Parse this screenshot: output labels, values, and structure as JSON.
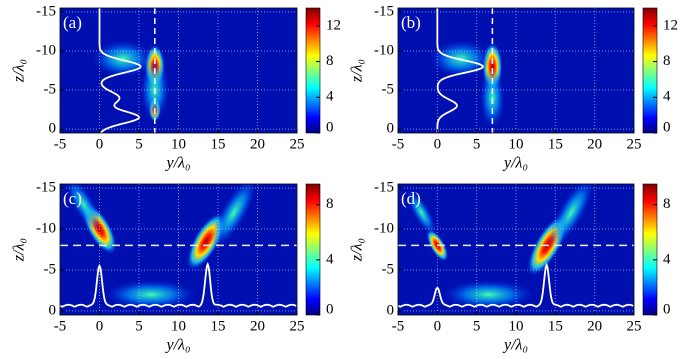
{
  "chart_data": [
    {
      "type": "heatmap",
      "panel_label": "(a)",
      "xlabel": "y/λ₀",
      "ylabel": "z/λ₀",
      "xlim": [
        -5,
        25
      ],
      "ylim": [
        0.5,
        -15.5
      ],
      "xticks": [
        -5,
        0,
        5,
        10,
        15,
        20,
        25
      ],
      "yticks": [
        0,
        -5,
        -10,
        -15
      ],
      "grid": true,
      "colorbar_lim": [
        0,
        14
      ],
      "colorbar_ticks": [
        0,
        4,
        8,
        12
      ],
      "guide_line": {
        "axis": "y",
        "value": 7
      }
    },
    {
      "type": "heatmap",
      "panel_label": "(b)",
      "xlabel": "y/λ₀",
      "ylabel": "z/λ₀",
      "xlim": [
        -5,
        25
      ],
      "ylim": [
        0.5,
        -15.5
      ],
      "xticks": [
        -5,
        0,
        5,
        10,
        15,
        20,
        25
      ],
      "yticks": [
        0,
        -5,
        -10,
        -15
      ],
      "grid": true,
      "colorbar_lim": [
        0,
        14
      ],
      "colorbar_ticks": [
        0,
        4,
        8,
        12
      ],
      "guide_line": {
        "axis": "y",
        "value": 7
      }
    },
    {
      "type": "heatmap",
      "panel_label": "(c)",
      "xlabel": "y/λ₀",
      "ylabel": "z/λ₀",
      "xlim": [
        -5,
        25
      ],
      "ylim": [
        0.5,
        -15.5
      ],
      "xticks": [
        -5,
        0,
        5,
        10,
        15,
        20,
        25
      ],
      "yticks": [
        0,
        -5,
        -10,
        -15
      ],
      "grid": true,
      "colorbar_lim": [
        0,
        9.5
      ],
      "colorbar_ticks": [
        0,
        4,
        8
      ],
      "guide_line": {
        "axis": "z",
        "value": -8
      }
    },
    {
      "type": "heatmap",
      "panel_label": "(d)",
      "xlabel": "y/λ₀",
      "ylabel": "z/λ₀",
      "xlim": [
        -5,
        25
      ],
      "ylim": [
        0.5,
        -15.5
      ],
      "xticks": [
        -5,
        0,
        5,
        10,
        15,
        20,
        25
      ],
      "yticks": [
        0,
        -5,
        -10,
        -15
      ],
      "grid": true,
      "colorbar_lim": [
        0,
        9.5
      ],
      "colorbar_ticks": [
        0,
        4,
        8
      ],
      "guide_line": {
        "axis": "z",
        "value": -8
      }
    }
  ]
}
